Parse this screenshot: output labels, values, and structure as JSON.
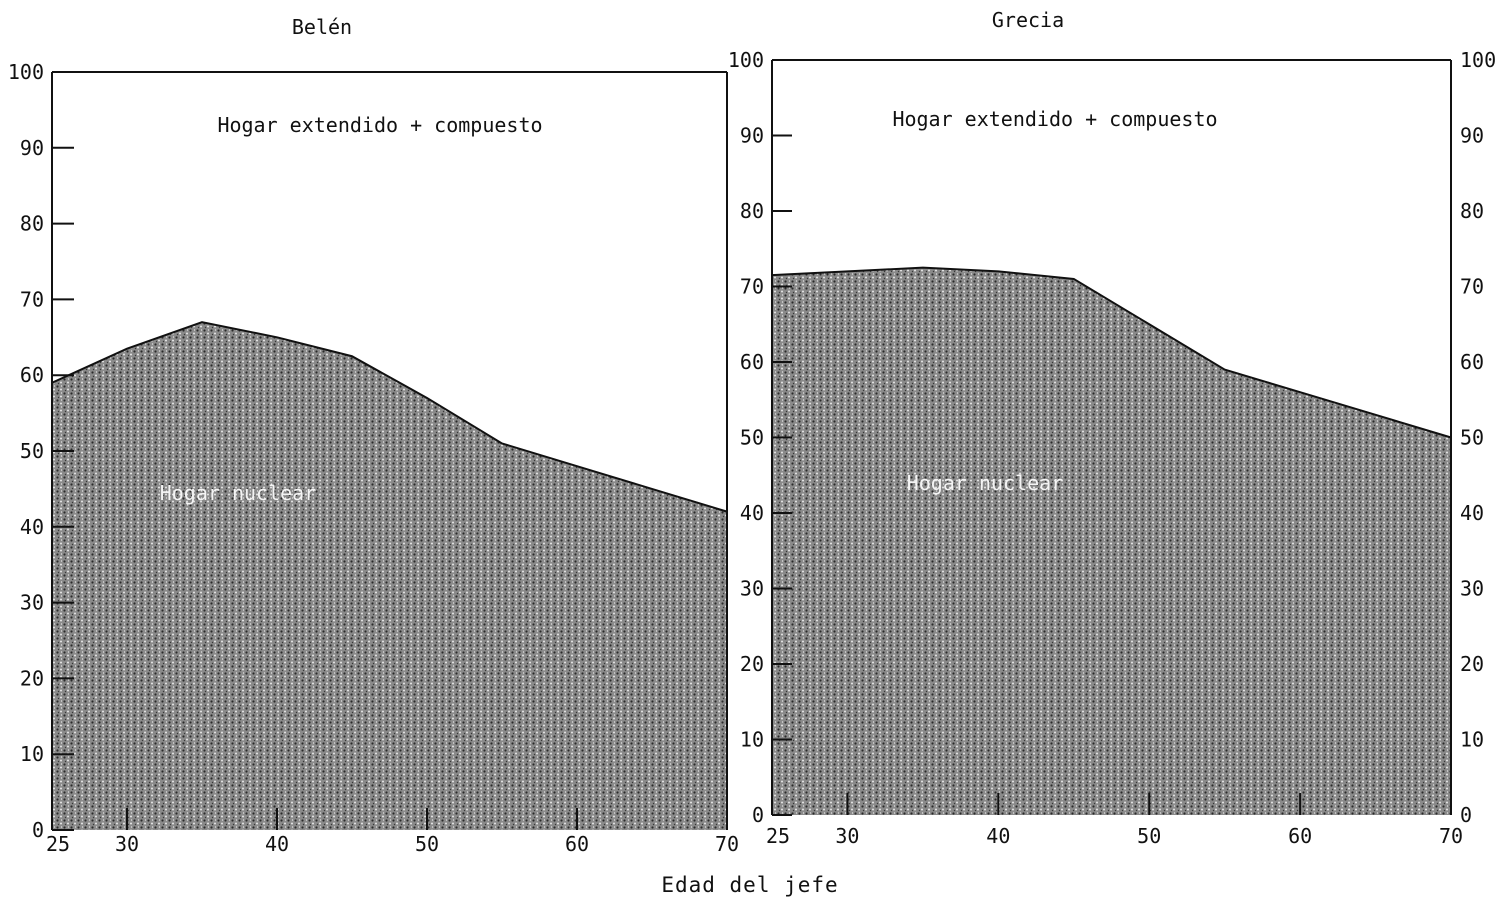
{
  "figure": {
    "xlabel": "Edad del jefe"
  },
  "chart_data": [
    {
      "type": "area",
      "title": "Belén",
      "xlabel": "Edad del jefe",
      "ylabel": "",
      "xlim": [
        25,
        70
      ],
      "ylim": [
        0,
        100
      ],
      "x_ticks": [
        25,
        30,
        40,
        50,
        60,
        70
      ],
      "y_ticks": [
        0,
        10,
        20,
        30,
        40,
        50,
        60,
        70,
        80,
        90,
        100
      ],
      "x": [
        25,
        30,
        35,
        40,
        45,
        50,
        55,
        60,
        65,
        70
      ],
      "series": [
        {
          "name": "Hogar nuclear",
          "values": [
            59,
            63.5,
            67,
            65,
            62.5,
            57,
            51,
            48,
            45,
            42
          ]
        },
        {
          "name": "Hogar extendido + compuesto",
          "values": [
            41,
            36.5,
            33,
            35,
            37.5,
            43,
            49,
            52,
            55,
            58
          ]
        }
      ],
      "stacked": true,
      "colors": {
        "nuclear_fill": "#6f6f6f",
        "line": "#111111"
      }
    },
    {
      "type": "area",
      "title": "Grecia",
      "xlabel": "Edad del jefe",
      "ylabel": "",
      "xlim": [
        25,
        70
      ],
      "ylim": [
        0,
        100
      ],
      "x_ticks": [
        25,
        30,
        40,
        50,
        60,
        70
      ],
      "y_ticks": [
        0,
        10,
        20,
        30,
        40,
        50,
        60,
        70,
        80,
        90,
        100
      ],
      "x": [
        25,
        30,
        35,
        40,
        45,
        50,
        55,
        60,
        65,
        70
      ],
      "series": [
        {
          "name": "Hogar nuclear",
          "values": [
            71.5,
            72,
            72.5,
            72,
            71,
            65,
            59,
            56,
            53,
            50
          ]
        },
        {
          "name": "Hogar extendido + compuesto",
          "values": [
            28.5,
            28,
            27.5,
            28,
            29,
            35,
            41,
            44,
            47,
            50
          ]
        }
      ],
      "stacked": true,
      "colors": {
        "nuclear_fill": "#6f6f6f",
        "line": "#111111"
      }
    }
  ]
}
